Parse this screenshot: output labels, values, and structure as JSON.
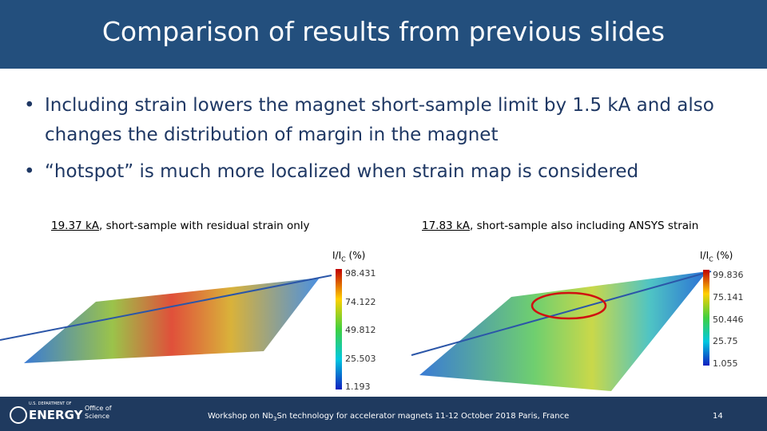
{
  "header": {
    "title": "Comparison of results from previous slides"
  },
  "bullets": [
    "Including strain lowers the magnet short-sample limit by 1.5 kA and also changes the distribution of margin in the magnet",
    "“hotspot” is much more localized when strain map is considered"
  ],
  "figures": [
    {
      "caption_value": "19.37 kA",
      "caption_text": ", short-sample with residual strain only",
      "colorbar_title": [
        "I/I",
        "C",
        " (%)"
      ],
      "colorbar_labels": [
        "98.431",
        "74.122",
        "49.812",
        "25.503",
        "1.193"
      ]
    },
    {
      "caption_value": "17.83 kA",
      "caption_text": ", short-sample also including ANSYS strain",
      "colorbar_title": [
        "I/I",
        "C",
        " (%)"
      ],
      "colorbar_labels": [
        "99.836",
        "75.141",
        "50.446",
        "25.75",
        "1.055"
      ]
    }
  ],
  "footer": {
    "logo_top": "U.S. DEPARTMENT OF",
    "logo_main": "ENERGY",
    "office": [
      "Office of",
      "Science"
    ],
    "text": [
      "Workshop on Nb",
      "3",
      "Sn technology for accelerator magnets 11-12 October 2018 Paris, France"
    ],
    "page": "14"
  }
}
